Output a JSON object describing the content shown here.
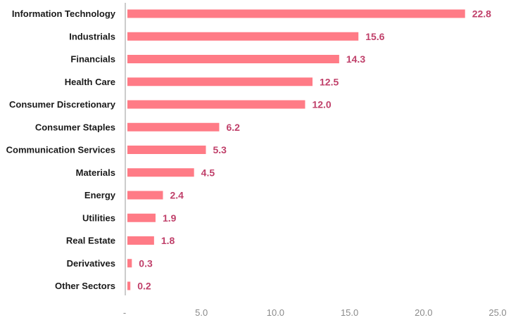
{
  "chart_data": {
    "type": "bar",
    "orientation": "horizontal",
    "categories": [
      "Information Technology",
      "Industrials",
      "Financials",
      "Health Care",
      "Consumer Discretionary",
      "Consumer Staples",
      "Communication Services",
      "Materials",
      "Energy",
      "Utilities",
      "Real Estate",
      "Derivatives",
      "Other Sectors"
    ],
    "values": [
      22.8,
      15.6,
      14.3,
      12.5,
      12.0,
      6.2,
      5.3,
      4.5,
      2.4,
      1.9,
      1.8,
      0.3,
      0.2
    ],
    "value_labels": [
      "22.8",
      "15.6",
      "14.3",
      "12.5",
      "12.0",
      "6.2",
      "5.3",
      "4.5",
      "2.4",
      "1.9",
      "1.8",
      "0.3",
      "0.2"
    ],
    "xlim": [
      0,
      25
    ],
    "x_ticks": [
      0,
      5,
      10,
      15,
      20,
      25
    ],
    "x_tick_labels": [
      "-",
      "5.0",
      "10.0",
      "15.0",
      "20.0",
      "25.0"
    ],
    "title": "",
    "xlabel": "",
    "ylabel": "",
    "grid": false,
    "colors": {
      "bar": "#ff7b86",
      "value_label": "#c0406a",
      "category_label": "#1a1a1a",
      "tick_label": "#8a8a8a",
      "axis": "#999999"
    }
  }
}
